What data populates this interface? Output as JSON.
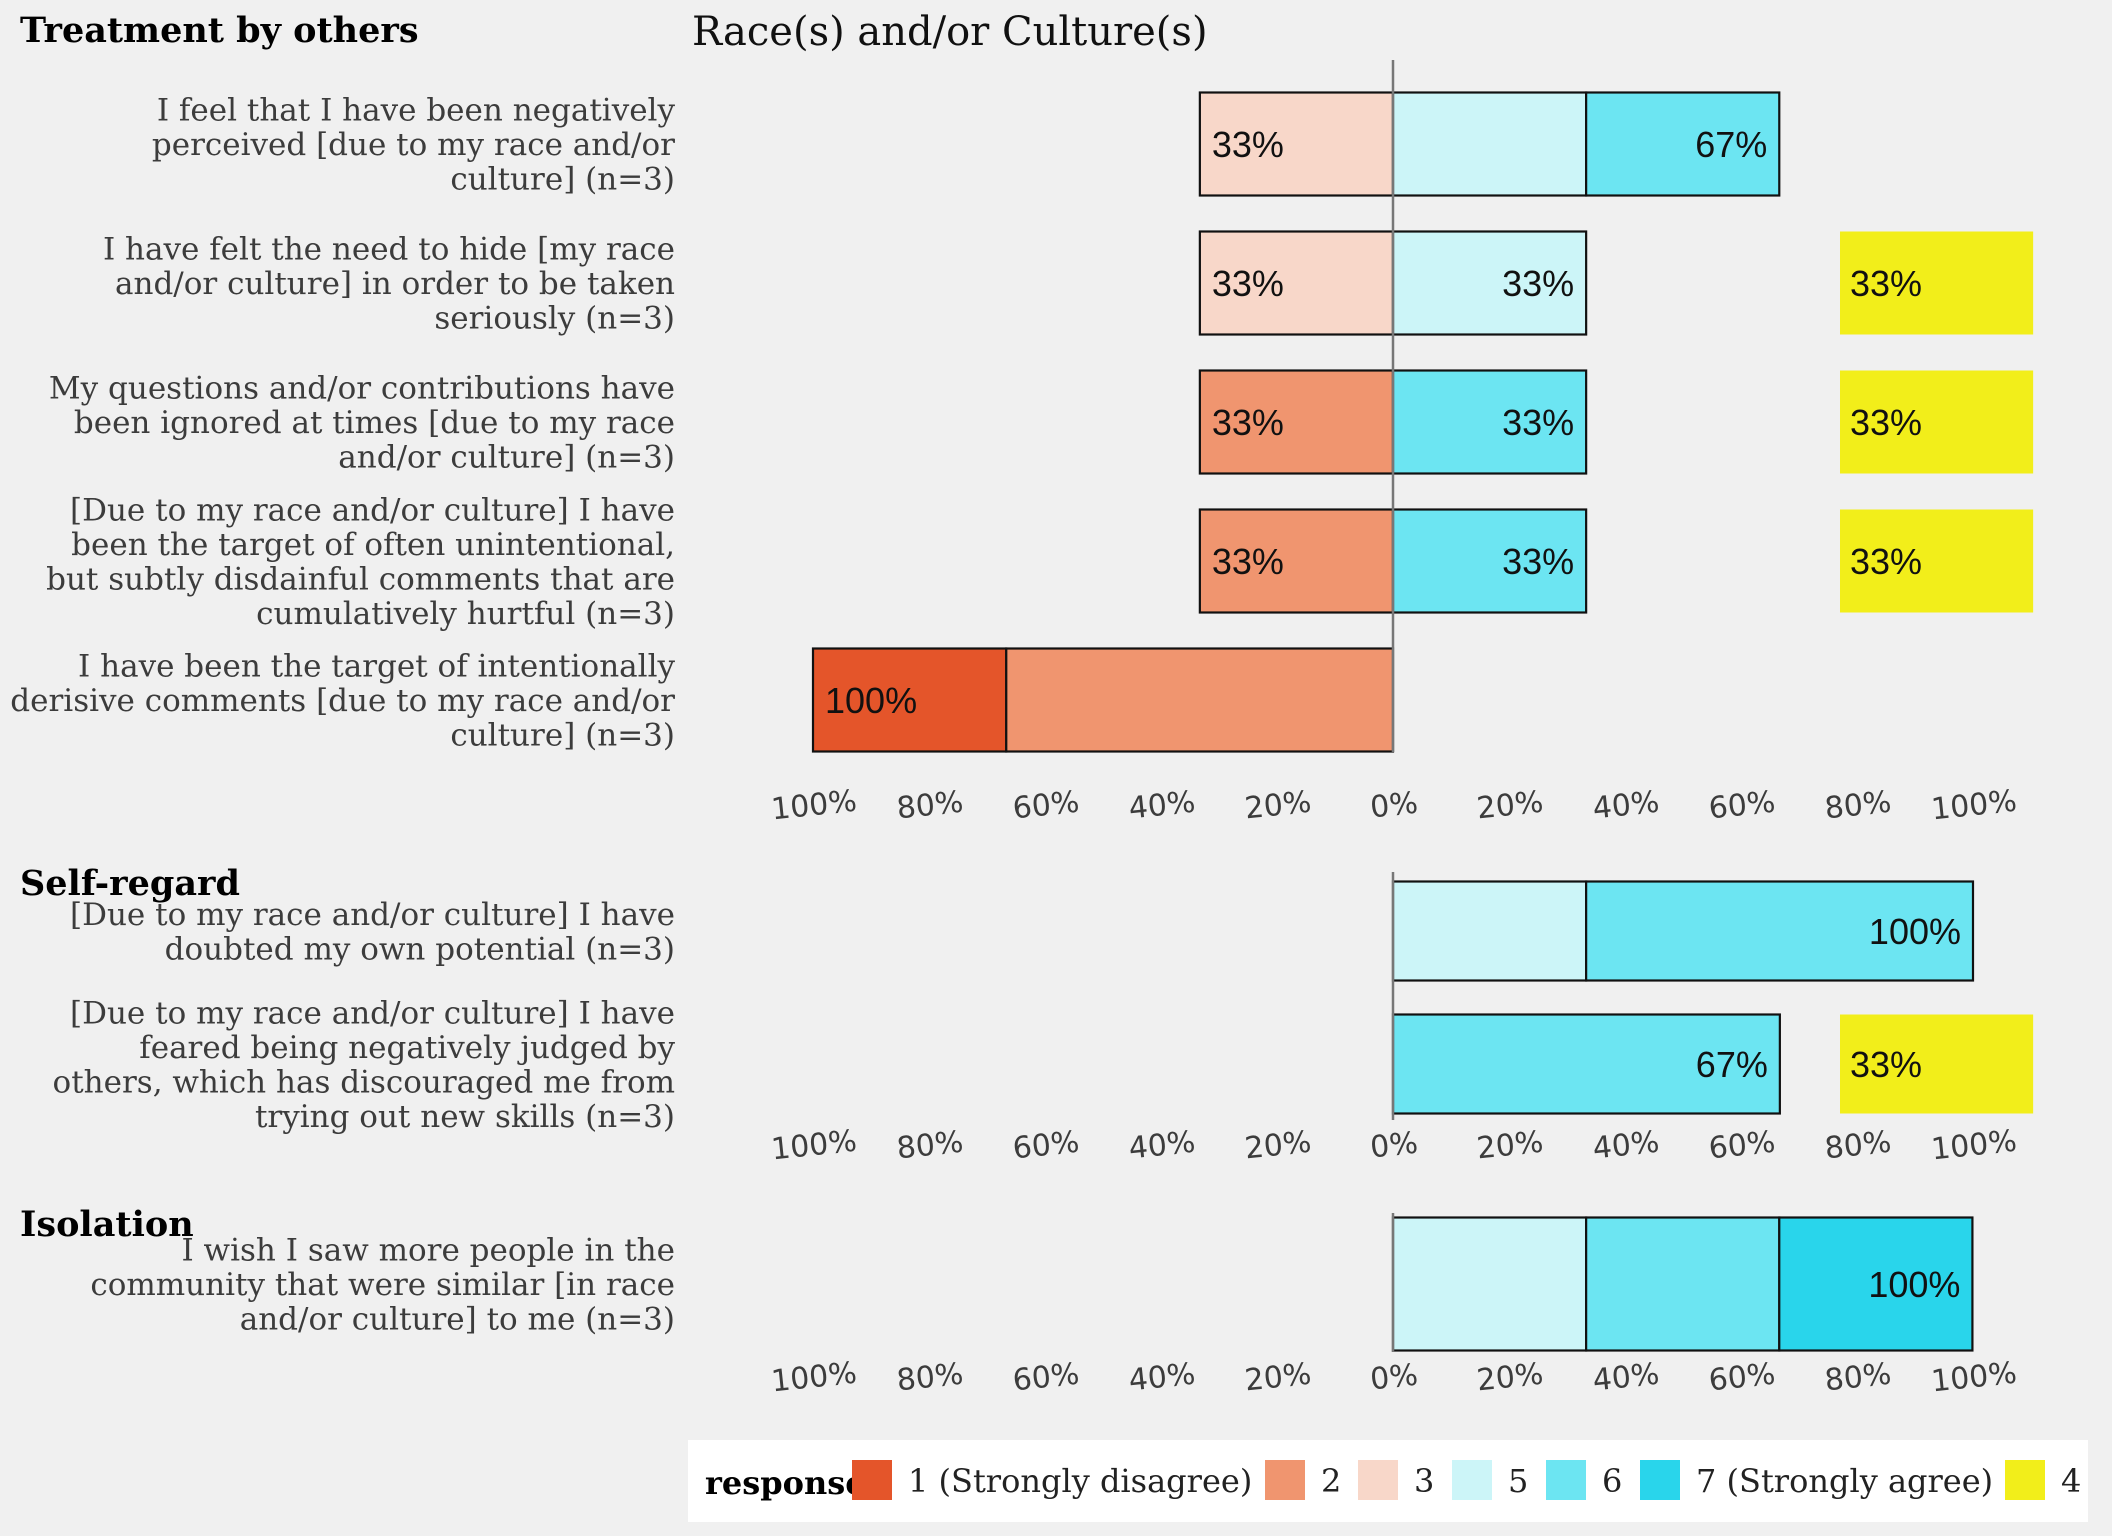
{
  "chart_data": {
    "type": "bar",
    "orientation": "horizontal",
    "stacking": "diverging",
    "title": "Race(s) and/or Culture(s)",
    "x_ticks": [
      "100%",
      "80%",
      "60%",
      "40%",
      "20%",
      "0%",
      "20%",
      "40%",
      "60%",
      "80%",
      "100%"
    ],
    "legend": {
      "title": "response",
      "placement": "bottom",
      "entries": [
        {
          "key": "1",
          "label": "1 (Strongly disagree)",
          "color": "#e4552a"
        },
        {
          "key": "2",
          "label": "2",
          "color": "#f0956f"
        },
        {
          "key": "3",
          "label": "3",
          "color": "#f8d7c9"
        },
        {
          "key": "5",
          "label": "5",
          "color": "#ccf5f8"
        },
        {
          "key": "6",
          "label": "6",
          "color": "#6ce5f2"
        },
        {
          "key": "7",
          "label": "7 (Strongly agree)",
          "color": "#29d5eb"
        },
        {
          "key": "4",
          "label": "4",
          "color": "#f2ee1a"
        }
      ]
    },
    "groups": [
      {
        "name": "Treatment by others",
        "items": [
          {
            "question": "I feel that I have been negatively perceived [due to my race and/or culture] (n=3)",
            "wrapped": [
              "I feel that I have been negatively",
              "perceived [due to my race and/or",
              "culture] (n=3)"
            ],
            "values": {
              "1": 0,
              "2": 0,
              "3": 33.3,
              "4": 0,
              "5": 33.3,
              "6": 33.3,
              "7": 0
            },
            "labels": {
              "disagree": "33%",
              "agree": "67%",
              "neutral": ""
            }
          },
          {
            "question": "I have felt the need to hide [my race and/or culture] in order to be taken seriously (n=3)",
            "wrapped": [
              "I have felt the need to hide [my race",
              "and/or culture] in order to be taken",
              "seriously (n=3)"
            ],
            "values": {
              "1": 0,
              "2": 0,
              "3": 33.3,
              "4": 33.3,
              "5": 33.3,
              "6": 0,
              "7": 0
            },
            "labels": {
              "disagree": "33%",
              "agree": "33%",
              "neutral": "33%"
            }
          },
          {
            "question": "My questions and/or contributions have been ignored at times [due to my race and/or culture] (n=3)",
            "wrapped": [
              "My questions and/or contributions have",
              "been ignored at times [due to my race",
              "and/or culture] (n=3)"
            ],
            "values": {
              "1": 0,
              "2": 33.3,
              "3": 0,
              "4": 33.3,
              "5": 0,
              "6": 33.3,
              "7": 0
            },
            "labels": {
              "disagree": "33%",
              "agree": "33%",
              "neutral": "33%"
            }
          },
          {
            "question": "[Due to my race and/or culture] I have been the target of often unintentional, but subtly disdainful comments that are cumulatively hurtful (n=3)",
            "wrapped": [
              "[Due to my race and/or culture] I have",
              "been the target of often unintentional,",
              "but subtly disdainful comments that are",
              "cumulatively hurtful (n=3)"
            ],
            "values": {
              "1": 0,
              "2": 33.3,
              "3": 0,
              "4": 33.3,
              "5": 0,
              "6": 33.3,
              "7": 0
            },
            "labels": {
              "disagree": "33%",
              "agree": "33%",
              "neutral": "33%"
            }
          },
          {
            "question": "I have been the target of intentionally derisive comments [due to my race and/or culture] (n=3)",
            "wrapped": [
              "I have been the target of intentionally",
              "derisive comments [due to my race and/or",
              "culture] (n=3)"
            ],
            "values": {
              "1": 33.3,
              "2": 66.7,
              "3": 0,
              "4": 0,
              "5": 0,
              "6": 0,
              "7": 0
            },
            "labels": {
              "disagree": "100%",
              "agree": "",
              "neutral": ""
            }
          }
        ]
      },
      {
        "name": "Self-regard",
        "items": [
          {
            "question": "[Due to my race and/or culture] I have doubted my own potential (n=3)",
            "wrapped": [
              "[Due to my race and/or culture] I have",
              "doubted my own potential (n=3)"
            ],
            "values": {
              "1": 0,
              "2": 0,
              "3": 0,
              "4": 0,
              "5": 33.3,
              "6": 66.7,
              "7": 0
            },
            "labels": {
              "disagree": "",
              "agree": "100%",
              "neutral": ""
            }
          },
          {
            "question": "[Due to my race and/or culture] I have feared being negatively judged by others, which has discouraged me from trying out new skills (n=3)",
            "wrapped": [
              "[Due to my race and/or culture] I have",
              "feared being negatively judged by",
              "others, which has discouraged me from",
              "trying out new skills (n=3)"
            ],
            "values": {
              "1": 0,
              "2": 0,
              "3": 0,
              "4": 33.3,
              "5": 0,
              "6": 66.7,
              "7": 0
            },
            "labels": {
              "disagree": "",
              "agree": "67%",
              "neutral": "33%"
            }
          }
        ]
      },
      {
        "name": "Isolation",
        "items": [
          {
            "question": "I wish I saw more people in the community that were similar [in race and/or culture] to me (n=3)",
            "wrapped": [
              "I wish I saw more people in the",
              "community that were similar [in race",
              "and/or culture] to me (n=3)"
            ],
            "values": {
              "1": 0,
              "2": 0,
              "3": 0,
              "4": 0,
              "5": 33.3,
              "6": 33.3,
              "7": 33.3
            },
            "labels": {
              "disagree": "",
              "agree": "100%",
              "neutral": ""
            }
          }
        ]
      }
    ]
  }
}
